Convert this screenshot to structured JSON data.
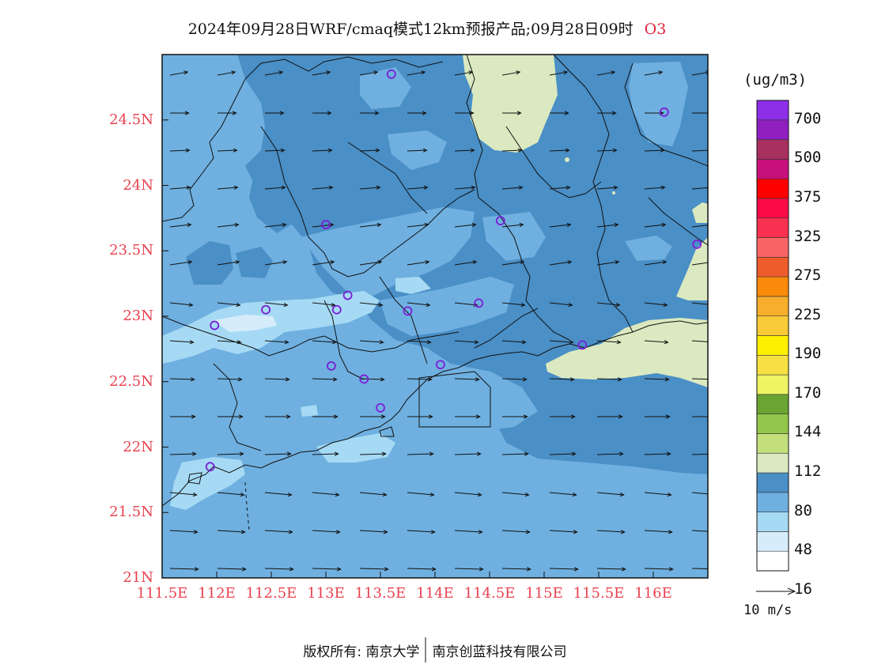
{
  "title": {
    "text": "2024年09月28日WRF/cmaq模式12km预报产品;09月28日09时",
    "pollutant": "O3"
  },
  "axes": {
    "lat_labels": [
      "24.5N",
      "24N",
      "23.5N",
      "23N",
      "22.5N",
      "22N",
      "21.5N",
      "21N"
    ],
    "lon_labels": [
      "111.5E",
      "112E",
      "112.5E",
      "113E",
      "113.5E",
      "114E",
      "114.5E",
      "115E",
      "115.5E",
      "116E"
    ],
    "lat_range": [
      21,
      25
    ],
    "lon_range": [
      111.5,
      116.5
    ]
  },
  "colorbar": {
    "unit": "(ug/m3)",
    "labels": [
      "700",
      "500",
      "375",
      "325",
      "275",
      "225",
      "190",
      "170",
      "144",
      "112",
      "80",
      "48",
      "16"
    ],
    "colors": [
      "#ffffff",
      "#d6ecfa",
      "#a6daf4",
      "#6fb0e0",
      "#4a8fc6",
      "#dbe9c0",
      "#c2df7c",
      "#93c64a",
      "#6aa431",
      "#eef462",
      "#f7e041",
      "#fff000",
      "#f9ca37",
      "#f6ae2c",
      "#f98a0a",
      "#ee5c2b",
      "#fb6464",
      "#f93050",
      "#fb0a48",
      "#fe0000",
      "#c8107a",
      "#a8305e",
      "#8f1fc1",
      "#8d2fe8"
    ]
  },
  "reference_vector": {
    "label": "10  m/s"
  },
  "stations": [
    {
      "lon": 111.94,
      "lat": 21.85
    },
    {
      "lon": 111.98,
      "lat": 22.93
    },
    {
      "lon": 112.45,
      "lat": 23.05
    },
    {
      "lon": 113.0,
      "lat": 23.7
    },
    {
      "lon": 113.05,
      "lat": 22.62
    },
    {
      "lon": 113.1,
      "lat": 23.05
    },
    {
      "lon": 113.2,
      "lat": 23.16
    },
    {
      "lon": 113.35,
      "lat": 22.52
    },
    {
      "lon": 113.5,
      "lat": 22.3
    },
    {
      "lon": 113.6,
      "lat": 24.85
    },
    {
      "lon": 113.75,
      "lat": 23.04
    },
    {
      "lon": 114.05,
      "lat": 22.63
    },
    {
      "lon": 114.4,
      "lat": 23.1
    },
    {
      "lon": 114.6,
      "lat": 23.73
    },
    {
      "lon": 115.35,
      "lat": 22.78
    },
    {
      "lon": 116.1,
      "lat": 24.56
    },
    {
      "lon": 116.4,
      "lat": 23.55
    }
  ],
  "copyright": {
    "text": "版权所有: 南京大学",
    "partner": "南京创蓝科技有限公司"
  }
}
